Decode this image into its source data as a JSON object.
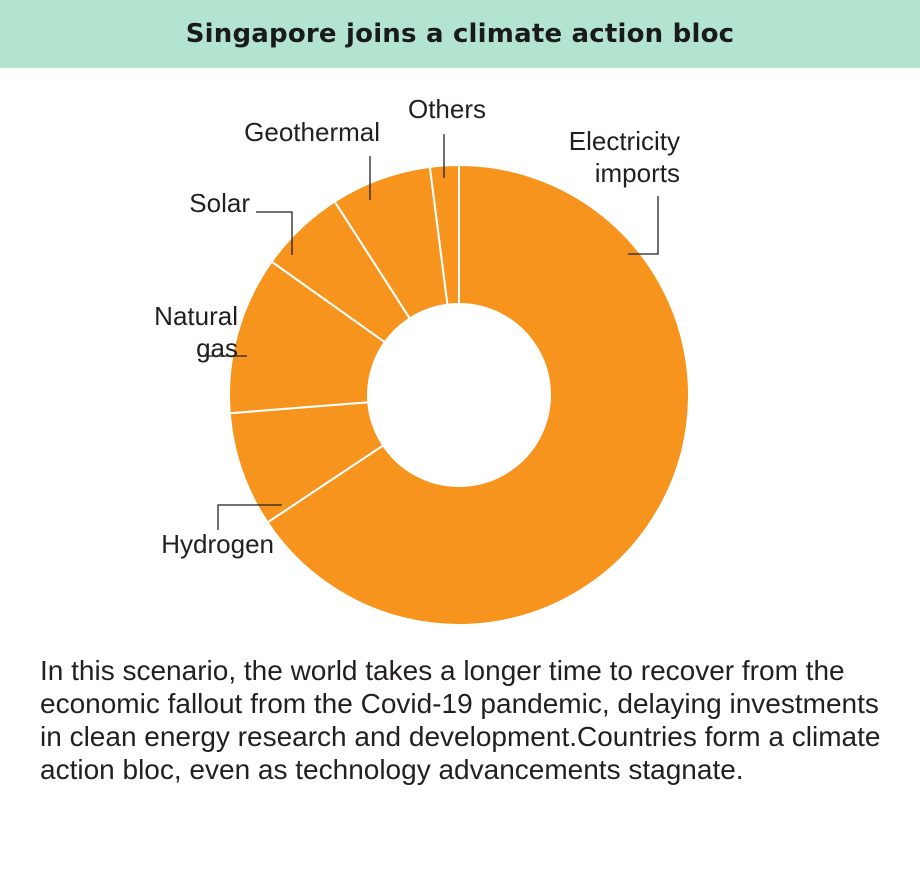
{
  "header": {
    "title": "Singapore joins a climate action bloc",
    "background": "#b3e4cf"
  },
  "chart_data": {
    "type": "pie",
    "donut": true,
    "title": "Singapore joins a climate action bloc",
    "slice_color": "#f7941d",
    "separator_color": "#ffffff",
    "categories": [
      "Electricity imports",
      "Hydrogen",
      "Natural gas",
      "Solar",
      "Geothermal",
      "Others"
    ],
    "values": [
      65,
      8,
      11,
      6,
      7,
      2
    ],
    "unit": "%",
    "labels": [
      {
        "lines": [
          "Electricity",
          "imports"
        ]
      },
      {
        "lines": [
          "Hydrogen"
        ]
      },
      {
        "lines": [
          "Natural",
          "gas"
        ]
      },
      {
        "lines": [
          "Solar"
        ]
      },
      {
        "lines": [
          "Geothermal"
        ]
      },
      {
        "lines": [
          "Others"
        ]
      }
    ]
  },
  "caption": "In this scenario, the world takes a longer time to recover from the economic fallout from the Covid-19 pandemic, delaying investments in clean energy research and development.Countries form a climate action bloc, even as technology advancements stagnate."
}
